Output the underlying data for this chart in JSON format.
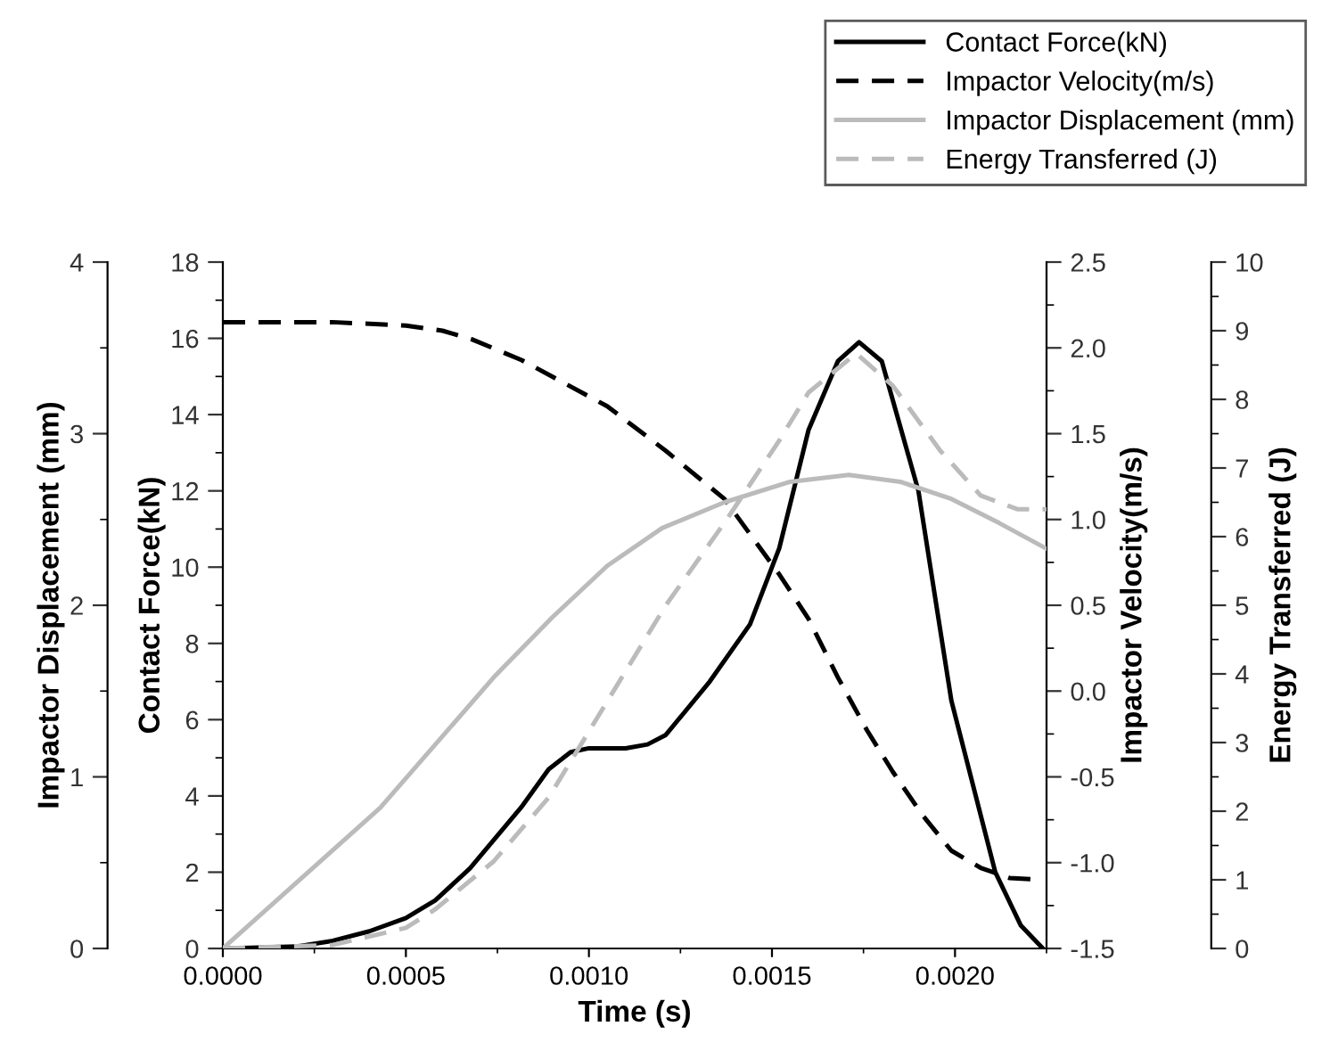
{
  "chart_data": [
    {
      "type": "line",
      "xlabel": "Time (s)",
      "ylabel": "Contact Force(kN)",
      "y2label": "Impactor Velocity(m/s)",
      "xlim": [
        0,
        0.00225
      ],
      "xticks": [
        {
          "value": 0,
          "label": "0.0000"
        },
        {
          "value": 0.0005,
          "label": "0.0005"
        },
        {
          "value": 0.001,
          "label": "0.0010"
        },
        {
          "value": 0.0015,
          "label": "0.0015"
        },
        {
          "value": 0.002,
          "label": "0.0020"
        }
      ],
      "ylim": [
        0,
        18
      ],
      "yticks": [
        0,
        2,
        4,
        6,
        8,
        10,
        12,
        14,
        16,
        18
      ],
      "y2lim": [
        -1.5,
        2.5
      ],
      "y2ticks": [
        {
          "value": -1.5,
          "label": "-1.5"
        },
        {
          "value": -1.0,
          "label": "-1.0"
        },
        {
          "value": -0.5,
          "label": "-0.5"
        },
        {
          "value": 0,
          "label": "0.0"
        },
        {
          "value": 0.5,
          "label": "0.5"
        },
        {
          "value": 1.0,
          "label": "1.0"
        },
        {
          "value": 1.5,
          "label": "1.5"
        },
        {
          "value": 2.0,
          "label": "2.0"
        },
        {
          "value": 2.5,
          "label": "2.5"
        }
      ],
      "legend": "top right",
      "series": [
        {
          "name": "Contact Force(kN)",
          "color": "#000000",
          "axis": "y",
          "line_style": "solid",
          "x": [
            0,
            0.0002,
            0.0003,
            0.0004,
            0.0005,
            0.00058,
            0.000675,
            0.000815,
            0.00089,
            0.00095,
            0.001,
            0.0011,
            0.00116,
            0.00121,
            0.00133,
            0.00144,
            0.00152,
            0.0016,
            0.00168,
            0.001738,
            0.0018,
            0.0019,
            0.00199,
            0.00211,
            0.00218,
            0.00224
          ],
          "values": [
            0,
            0.05,
            0.2,
            0.45,
            0.8,
            1.26,
            2.1,
            3.7,
            4.7,
            5.15,
            5.25,
            5.25,
            5.35,
            5.6,
            7.0,
            8.5,
            10.5,
            13.6,
            15.4,
            15.9,
            15.4,
            12.0,
            6.5,
            2.0,
            0.6,
            0
          ]
        },
        {
          "name": "Impactor Velocity(m/s)",
          "color": "#000000",
          "axis": "y2",
          "line_style": "dashed",
          "x": [
            0,
            0.0003,
            0.0005,
            0.0006,
            0.00068,
            0.000815,
            0.00105,
            0.00121,
            0.00137,
            0.00152,
            0.0016,
            0.00168,
            0.00176,
            0.00183,
            0.00191,
            0.00199,
            0.00207,
            0.00215,
            0.00224
          ],
          "values": [
            2.15,
            2.15,
            2.13,
            2.1,
            2.05,
            1.93,
            1.66,
            1.4,
            1.12,
            0.68,
            0.42,
            0.08,
            -0.23,
            -0.47,
            -0.72,
            -0.93,
            -1.03,
            -1.09,
            -1.1
          ]
        }
      ]
    },
    {
      "type": "line",
      "ylabel": "Impactor Displacement (mm)",
      "y2label": "Energy Transferred (J)",
      "tick_labels": "y",
      "xlim": [
        0,
        0.00225
      ],
      "ylim": [
        0,
        4
      ],
      "yticks": [
        0,
        1,
        2,
        3,
        4
      ],
      "y2lim": [
        0,
        10
      ],
      "y2ticks": [
        0,
        1,
        2,
        3,
        4,
        5,
        6,
        7,
        8,
        9,
        10
      ],
      "legend": "top right",
      "series": [
        {
          "name": "Impactor Displacement (mm)",
          "color": "#bbbbbb",
          "axis": "y",
          "line_style": "solid",
          "x": [
            0,
            0.00043,
            0.00074,
            0.0009,
            0.00105,
            0.0012,
            0.00137,
            0.00155,
            0.00171,
            0.00185,
            0.00199,
            0.00212,
            0.00225
          ],
          "values": [
            0,
            0.82,
            1.58,
            1.93,
            2.23,
            2.45,
            2.6,
            2.72,
            2.76,
            2.72,
            2.62,
            2.48,
            2.33
          ]
        },
        {
          "name": "Energy Transferred (J)",
          "color": "#bbbbbb",
          "axis": "y2",
          "line_style": "dashed",
          "x": [
            0,
            0.0003,
            0.0005,
            0.00058,
            0.00074,
            0.00089,
            0.00105,
            0.00121,
            0.00137,
            0.00152,
            0.0016,
            0.00173,
            0.00183,
            0.00196,
            0.00207,
            0.00217,
            0.00225
          ],
          "values": [
            0,
            0.05,
            0.3,
            0.57,
            1.27,
            2.2,
            3.6,
            5.0,
            6.2,
            7.4,
            8.1,
            8.67,
            8.2,
            7.25,
            6.6,
            6.4,
            6.4
          ]
        }
      ]
    }
  ]
}
